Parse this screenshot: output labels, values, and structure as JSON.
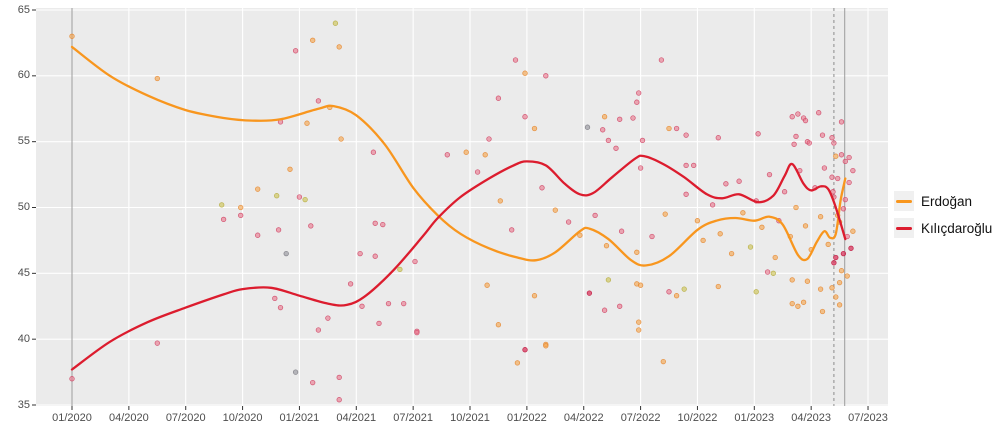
{
  "chart_data": {
    "type": "scatter",
    "title": "",
    "xlabel": "",
    "ylabel": "",
    "x_axis": {
      "tick_labels": [
        "01/2020",
        "04/2020",
        "07/2020",
        "10/2020",
        "01/2021",
        "04/2021",
        "07/2021",
        "10/2021",
        "01/2022",
        "04/2022",
        "07/2022",
        "10/2022",
        "01/2023",
        "04/2023",
        "07/2023"
      ],
      "tick_months": [
        0,
        3,
        6,
        9,
        12,
        15,
        18,
        21,
        24,
        27,
        30,
        33,
        36,
        39,
        42
      ]
    },
    "y_axis": {
      "tick_labels": [
        "65",
        "60",
        "55",
        "50",
        "45",
        "40",
        "35"
      ],
      "tick_values": [
        65,
        60,
        55,
        50,
        45,
        40,
        35
      ]
    },
    "ylim": [
      34.8,
      65.2
    ],
    "xlim_months": [
      -1.9,
      43.1
    ],
    "grid": "white-major-on-grey-panel",
    "series": [
      {
        "name": "Erdoğan",
        "color": "#F8961E",
        "trend": [
          [
            0,
            62.2
          ],
          [
            2,
            60.0
          ],
          [
            4,
            58.5
          ],
          [
            6,
            57.4
          ],
          [
            8,
            56.8
          ],
          [
            9.5,
            56.6
          ],
          [
            11,
            56.7
          ],
          [
            13,
            57.5
          ],
          [
            13.8,
            57.7
          ],
          [
            15,
            57.0
          ],
          [
            16.5,
            54.8
          ],
          [
            18,
            51.5
          ],
          [
            19.3,
            49.4
          ],
          [
            20.5,
            48.0
          ],
          [
            22,
            46.9
          ],
          [
            23.5,
            46.2
          ],
          [
            24.5,
            46.0
          ],
          [
            25.5,
            46.6
          ],
          [
            26.8,
            48.2
          ],
          [
            27.3,
            48.4
          ],
          [
            28.3,
            47.6
          ],
          [
            29.5,
            46.0
          ],
          [
            30.3,
            45.6
          ],
          [
            31.5,
            46.3
          ],
          [
            33,
            48.3
          ],
          [
            34,
            49.0
          ],
          [
            35,
            49.2
          ],
          [
            36,
            49.0
          ],
          [
            36.8,
            49.3
          ],
          [
            37.5,
            48.7
          ],
          [
            38.3,
            46.4
          ],
          [
            38.8,
            46.1
          ],
          [
            39.3,
            47.4
          ],
          [
            39.7,
            48.2
          ],
          [
            40.0,
            47.7
          ],
          [
            40.3,
            48.0
          ],
          [
            40.55,
            50.5
          ],
          [
            40.8,
            52.2
          ]
        ]
      },
      {
        "name": "Kılıçdaroğlu",
        "color": "#DC1C2E",
        "trend": [
          [
            0,
            37.7
          ],
          [
            2,
            39.8
          ],
          [
            4,
            41.3
          ],
          [
            6,
            42.4
          ],
          [
            8,
            43.4
          ],
          [
            9,
            43.8
          ],
          [
            10.5,
            43.9
          ],
          [
            12,
            43.3
          ],
          [
            13.5,
            42.7
          ],
          [
            14.5,
            42.6
          ],
          [
            15.5,
            43.3
          ],
          [
            17,
            45.3
          ],
          [
            18.5,
            47.8
          ],
          [
            19.3,
            49.2
          ],
          [
            20.5,
            50.8
          ],
          [
            22,
            52.2
          ],
          [
            23.3,
            53.2
          ],
          [
            24,
            53.5
          ],
          [
            25,
            53.2
          ],
          [
            26,
            51.8
          ],
          [
            26.8,
            51.0
          ],
          [
            27.5,
            51.1
          ],
          [
            28.5,
            52.3
          ],
          [
            29.7,
            53.7
          ],
          [
            30.2,
            53.9
          ],
          [
            31.2,
            53.3
          ],
          [
            32.3,
            52.3
          ],
          [
            33.5,
            51.0
          ],
          [
            34.3,
            50.7
          ],
          [
            35.2,
            51.0
          ],
          [
            36.2,
            50.4
          ],
          [
            37.0,
            50.9
          ],
          [
            37.6,
            52.4
          ],
          [
            38.0,
            53.3
          ],
          [
            38.6,
            51.8
          ],
          [
            39.0,
            51.3
          ],
          [
            39.5,
            51.6
          ],
          [
            39.9,
            51.4
          ],
          [
            40.3,
            50.0
          ],
          [
            40.8,
            47.6
          ]
        ]
      }
    ],
    "point_colors": {
      "o": {
        "name": "orange-poll-point",
        "fill": "rgba(246,164,76,0.62)",
        "stroke": "rgba(228,130,40,0.85)"
      },
      "p": {
        "name": "pink-poll-point",
        "fill": "rgba(233,116,138,0.60)",
        "stroke": "rgba(206,62,96,0.85)"
      },
      "r": {
        "name": "red-poll-point",
        "fill": "rgba(216,54,92,0.75)",
        "stroke": "rgba(190,20,60,0.9)"
      },
      "y": {
        "name": "yellow-poll-point",
        "fill": "rgba(208,200,100,0.70)",
        "stroke": "rgba(180,170,60,0.85)"
      },
      "g": {
        "name": "grey-poll-point",
        "fill": "rgba(150,150,158,0.65)",
        "stroke": "rgba(120,120,128,0.85)"
      }
    },
    "scatter_points": [
      [
        0,
        63,
        "o"
      ],
      [
        0,
        37,
        "p"
      ],
      [
        4.5,
        59.8,
        "o"
      ],
      [
        4.5,
        39.7,
        "p"
      ],
      [
        7.9,
        50.2,
        "y"
      ],
      [
        8.9,
        50.0,
        "o"
      ],
      [
        8.0,
        49.1,
        "p"
      ],
      [
        8.9,
        49.4,
        "p"
      ],
      [
        9.8,
        51.4,
        "o"
      ],
      [
        10.8,
        50.9,
        "y"
      ],
      [
        9.8,
        47.9,
        "p"
      ],
      [
        10.9,
        48.3,
        "p"
      ],
      [
        11.3,
        46.5,
        "g"
      ],
      [
        10.7,
        43.1,
        "p"
      ],
      [
        11.0,
        42.4,
        "p"
      ],
      [
        11.8,
        37.5,
        "g"
      ],
      [
        12.7,
        36.7,
        "p"
      ],
      [
        14.1,
        35.4,
        "p"
      ],
      [
        14.1,
        37.1,
        "p"
      ],
      [
        13.9,
        64.0,
        "y"
      ],
      [
        12.7,
        62.7,
        "o"
      ],
      [
        14.1,
        62.2,
        "o"
      ],
      [
        11.8,
        61.9,
        "p"
      ],
      [
        13.0,
        58.1,
        "p"
      ],
      [
        13.6,
        57.6,
        "o"
      ],
      [
        11.0,
        56.5,
        "p"
      ],
      [
        12.4,
        56.4,
        "o"
      ],
      [
        14.2,
        55.2,
        "o"
      ],
      [
        11.5,
        52.9,
        "o"
      ],
      [
        12.3,
        50.6,
        "y"
      ],
      [
        12.6,
        48.6,
        "p"
      ],
      [
        12.0,
        50.8,
        "p"
      ],
      [
        15.9,
        54.2,
        "p"
      ],
      [
        16.0,
        48.8,
        "p"
      ],
      [
        16.4,
        48.7,
        "p"
      ],
      [
        15.2,
        46.5,
        "p"
      ],
      [
        16.0,
        46.3,
        "p"
      ],
      [
        17.3,
        45.3,
        "y"
      ],
      [
        18.1,
        45.9,
        "p"
      ],
      [
        15.3,
        42.5,
        "p"
      ],
      [
        16.2,
        41.2,
        "p"
      ],
      [
        16.7,
        42.7,
        "p"
      ],
      [
        17.5,
        42.7,
        "p"
      ],
      [
        18.2,
        40.6,
        "p"
      ],
      [
        18.2,
        40.5,
        "p"
      ],
      [
        14.7,
        44.2,
        "p"
      ],
      [
        13.5,
        41.6,
        "p"
      ],
      [
        13.0,
        40.7,
        "p"
      ],
      [
        19.8,
        54.0,
        "p"
      ],
      [
        20.8,
        54.2,
        "o"
      ],
      [
        21.8,
        54.0,
        "o"
      ],
      [
        21.4,
        52.7,
        "p"
      ],
      [
        22.0,
        55.2,
        "p"
      ],
      [
        22.6,
        50.5,
        "o"
      ],
      [
        23.2,
        48.3,
        "p"
      ],
      [
        21.9,
        44.1,
        "o"
      ],
      [
        22.5,
        41.1,
        "o"
      ],
      [
        23.5,
        38.2,
        "o"
      ],
      [
        23.9,
        39.2,
        "r"
      ],
      [
        24.4,
        43.3,
        "o"
      ],
      [
        25.0,
        39.6,
        "o"
      ],
      [
        25.0,
        39.5,
        "o"
      ],
      [
        22.5,
        58.3,
        "p"
      ],
      [
        23.4,
        61.2,
        "p"
      ],
      [
        23.9,
        60.2,
        "o"
      ],
      [
        25.0,
        60.0,
        "p"
      ],
      [
        23.9,
        56.9,
        "p"
      ],
      [
        24.4,
        56.0,
        "o"
      ],
      [
        27.2,
        56.1,
        "g"
      ],
      [
        28.0,
        55.9,
        "p"
      ],
      [
        28.1,
        56.9,
        "o"
      ],
      [
        28.9,
        56.7,
        "p"
      ],
      [
        29.6,
        56.8,
        "p"
      ],
      [
        29.9,
        58.7,
        "p"
      ],
      [
        29.8,
        58.0,
        "p"
      ],
      [
        31.1,
        61.2,
        "p"
      ],
      [
        28.3,
        55.1,
        "p"
      ],
      [
        28.7,
        54.5,
        "p"
      ],
      [
        30.1,
        55.1,
        "p"
      ],
      [
        31.5,
        56.0,
        "o"
      ],
      [
        31.9,
        56.0,
        "p"
      ],
      [
        32.4,
        53.2,
        "p"
      ],
      [
        32.8,
        53.2,
        "p"
      ],
      [
        30.0,
        53.0,
        "p"
      ],
      [
        24.8,
        51.5,
        "p"
      ],
      [
        25.5,
        49.8,
        "o"
      ],
      [
        26.2,
        48.9,
        "p"
      ],
      [
        26.8,
        47.9,
        "o"
      ],
      [
        27.6,
        49.4,
        "p"
      ],
      [
        28.2,
        47.1,
        "o"
      ],
      [
        29.0,
        48.2,
        "p"
      ],
      [
        29.8,
        46.6,
        "o"
      ],
      [
        30.6,
        47.8,
        "p"
      ],
      [
        31.3,
        49.5,
        "o"
      ],
      [
        27.3,
        43.5,
        "r"
      ],
      [
        28.1,
        42.2,
        "p"
      ],
      [
        28.3,
        44.5,
        "y"
      ],
      [
        28.9,
        42.5,
        "p"
      ],
      [
        29.8,
        44.2,
        "o"
      ],
      [
        30.0,
        44.1,
        "o"
      ],
      [
        31.5,
        43.6,
        "p"
      ],
      [
        31.9,
        43.3,
        "o"
      ],
      [
        32.3,
        43.8,
        "y"
      ],
      [
        34.1,
        44.0,
        "o"
      ],
      [
        31.2,
        38.3,
        "o"
      ],
      [
        29.9,
        41.3,
        "o"
      ],
      [
        29.9,
        40.7,
        "o"
      ],
      [
        32.4,
        51.0,
        "p"
      ],
      [
        33.0,
        49.0,
        "o"
      ],
      [
        33.3,
        47.5,
        "o"
      ],
      [
        33.8,
        50.2,
        "p"
      ],
      [
        34.2,
        48.0,
        "o"
      ],
      [
        34.5,
        51.8,
        "p"
      ],
      [
        34.8,
        46.5,
        "o"
      ],
      [
        35.2,
        52.0,
        "p"
      ],
      [
        35.4,
        49.6,
        "o"
      ],
      [
        35.8,
        47.0,
        "y"
      ],
      [
        36.1,
        50.5,
        "p"
      ],
      [
        36.4,
        48.5,
        "o"
      ],
      [
        36.8,
        52.5,
        "p"
      ],
      [
        37.1,
        46.2,
        "o"
      ],
      [
        37.3,
        49.0,
        "p"
      ],
      [
        37.6,
        51.2,
        "p"
      ],
      [
        37.9,
        47.8,
        "o"
      ],
      [
        38.2,
        50.0,
        "o"
      ],
      [
        38.4,
        52.8,
        "p"
      ],
      [
        38.7,
        48.6,
        "o"
      ],
      [
        39.0,
        46.8,
        "o"
      ],
      [
        39.2,
        51.5,
        "p"
      ],
      [
        39.5,
        49.3,
        "o"
      ],
      [
        39.7,
        53.0,
        "p"
      ],
      [
        39.9,
        47.2,
        "o"
      ],
      [
        40.2,
        50.8,
        "p"
      ],
      [
        32.4,
        55.5,
        "p"
      ],
      [
        34.1,
        55.3,
        "p"
      ],
      [
        36.2,
        55.6,
        "p"
      ],
      [
        38.0,
        56.9,
        "p"
      ],
      [
        38.3,
        57.1,
        "p"
      ],
      [
        38.6,
        56.8,
        "p"
      ],
      [
        38.7,
        56.6,
        "p"
      ],
      [
        39.4,
        57.2,
        "p"
      ],
      [
        38.2,
        55.4,
        "p"
      ],
      [
        38.1,
        54.8,
        "p"
      ],
      [
        38.8,
        55.0,
        "p"
      ],
      [
        38.9,
        54.9,
        "p"
      ],
      [
        39.6,
        55.5,
        "p"
      ],
      [
        40.1,
        55.3,
        "p"
      ],
      [
        36.1,
        43.6,
        "y"
      ],
      [
        36.7,
        45.1,
        "p"
      ],
      [
        37.0,
        45.0,
        "y"
      ],
      [
        38.0,
        44.5,
        "o"
      ],
      [
        38.0,
        42.7,
        "o"
      ],
      [
        38.3,
        42.5,
        "o"
      ],
      [
        38.6,
        42.8,
        "o"
      ],
      [
        38.8,
        44.4,
        "o"
      ],
      [
        39.5,
        43.8,
        "o"
      ],
      [
        39.6,
        42.1,
        "o"
      ],
      [
        40.1,
        43.9,
        "o"
      ],
      [
        40.2,
        45.8,
        "r"
      ],
      [
        40.3,
        46.2,
        "r"
      ],
      [
        40.4,
        52.2,
        "p"
      ],
      [
        40.5,
        48.9,
        "o"
      ],
      [
        40.6,
        54.0,
        "p"
      ],
      [
        40.7,
        46.5,
        "r"
      ],
      [
        40.8,
        53.5,
        "p"
      ],
      [
        40.9,
        47.8,
        "p"
      ],
      [
        41.0,
        53.8,
        "p"
      ],
      [
        41.1,
        46.9,
        "r"
      ],
      [
        41.2,
        52.8,
        "p"
      ],
      [
        41.2,
        48.2,
        "o"
      ],
      [
        40.5,
        44.3,
        "o"
      ],
      [
        40.6,
        45.2,
        "o"
      ],
      [
        40.7,
        49.9,
        "p"
      ],
      [
        40.8,
        50.6,
        "p"
      ],
      [
        40.9,
        44.8,
        "o"
      ],
      [
        41.0,
        51.9,
        "p"
      ],
      [
        40.3,
        53.9,
        "o"
      ],
      [
        40.4,
        49.4,
        "o"
      ],
      [
        40.6,
        56.5,
        "p"
      ],
      [
        40.2,
        54.9,
        "p"
      ],
      [
        40.1,
        52.3,
        "p"
      ],
      [
        40.15,
        51.2,
        "p"
      ],
      [
        40.3,
        43.2,
        "o"
      ],
      [
        40.5,
        42.6,
        "o"
      ]
    ],
    "annotations": {
      "vlines": [
        {
          "month": 0,
          "style": "solid",
          "color": "#9b9b9b"
        },
        {
          "month": 40.2,
          "style": "dashed",
          "color": "#8c8c8c"
        },
        {
          "month": 40.77,
          "style": "solid",
          "color": "#9b9b9b"
        }
      ]
    },
    "legend": {
      "position": "right",
      "entries": [
        {
          "label": "Erdoğan",
          "color": "#F8961E"
        },
        {
          "label": "Kılıçdaroğlu",
          "color": "#DC1C2E"
        }
      ]
    },
    "panel": {
      "background": "#ebebeb",
      "gridline_color": "#ffffff"
    }
  }
}
